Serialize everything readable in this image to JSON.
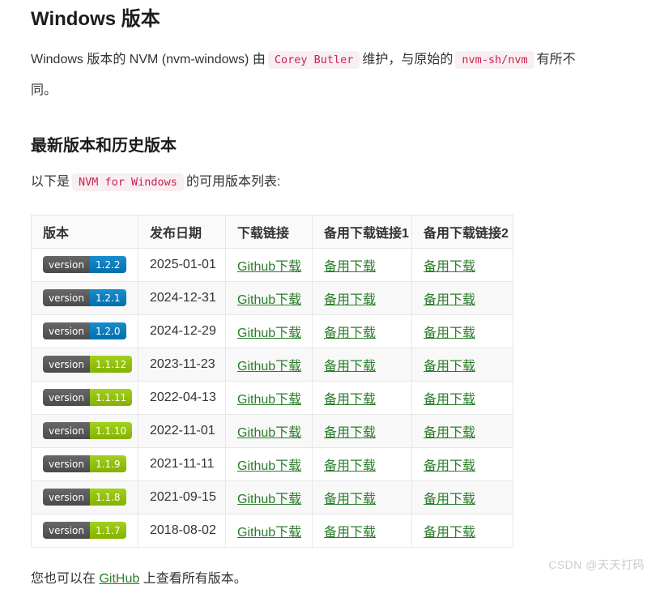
{
  "page": {
    "title": "Windows 版本",
    "intro": {
      "t1": "Windows 版本的 NVM (nvm-windows) 由",
      "code1": "Corey Butler",
      "t2": "维护，与原始的",
      "code2": "nvm-sh/nvm",
      "t3": "有所不同。"
    },
    "section_title": "最新版本和历史版本",
    "lede": {
      "t1": "以下是",
      "code1": "NVM for Windows",
      "t2": "的可用版本列表:"
    },
    "footer": {
      "t1": "您也可以在",
      "link": "GitHub",
      "t2": "上查看所有版本。"
    },
    "watermark": "CSDN @天天打码"
  },
  "colors": {
    "link_green": "#2b7d2b",
    "code_text": "#c7254e",
    "code_bg": "#f9eef2",
    "badge_gray": "#555555",
    "badge_blue": "#007ec6",
    "badge_green": "#97ca00",
    "table_border": "#e7e7e7",
    "stripe_bg": "#f8f8f8",
    "header_bg": "#fafafa",
    "watermark": "#cccccc"
  },
  "table": {
    "badge_label": "version",
    "headers": [
      "版本",
      "发布日期",
      "下载链接",
      "备用下载链接1",
      "备用下载链接2"
    ],
    "rows": [
      {
        "version": "1.2.2",
        "badge_color": "#007ec6",
        "date": "2025-01-01",
        "github_label": "Github下载",
        "alt1_label": "备用下载",
        "alt2_label": "备用下载"
      },
      {
        "version": "1.2.1",
        "badge_color": "#007ec6",
        "date": "2024-12-31",
        "github_label": "Github下载",
        "alt1_label": "备用下载",
        "alt2_label": "备用下载"
      },
      {
        "version": "1.2.0",
        "badge_color": "#007ec6",
        "date": "2024-12-29",
        "github_label": "Github下载",
        "alt1_label": "备用下载",
        "alt2_label": "备用下载"
      },
      {
        "version": "1.1.12",
        "badge_color": "#97ca00",
        "date": "2023-11-23",
        "github_label": "Github下载",
        "alt1_label": "备用下载",
        "alt2_label": "备用下载"
      },
      {
        "version": "1.1.11",
        "badge_color": "#97ca00",
        "date": "2022-04-13",
        "github_label": "Github下载",
        "alt1_label": "备用下载",
        "alt2_label": "备用下载"
      },
      {
        "version": "1.1.10",
        "badge_color": "#97ca00",
        "date": "2022-11-01",
        "github_label": "Github下载",
        "alt1_label": "备用下载",
        "alt2_label": "备用下载"
      },
      {
        "version": "1.1.9",
        "badge_color": "#97ca00",
        "date": "2021-11-11",
        "github_label": "Github下载",
        "alt1_label": "备用下载",
        "alt2_label": "备用下载"
      },
      {
        "version": "1.1.8",
        "badge_color": "#97ca00",
        "date": "2021-09-15",
        "github_label": "Github下载",
        "alt1_label": "备用下载",
        "alt2_label": "备用下载"
      },
      {
        "version": "1.1.7",
        "badge_color": "#97ca00",
        "date": "2018-08-02",
        "github_label": "Github下载",
        "alt1_label": "备用下载",
        "alt2_label": "备用下载"
      }
    ]
  }
}
